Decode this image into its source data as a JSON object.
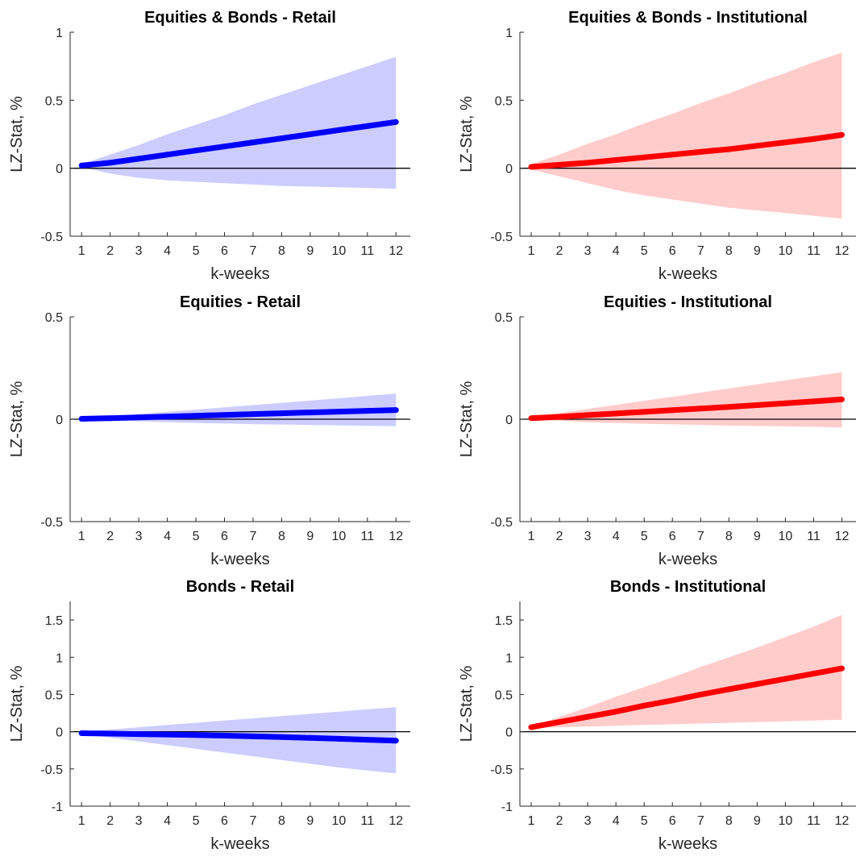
{
  "chart_data": [
    {
      "type": "line",
      "title": "Equities & Bonds - Retail",
      "xlabel": "k-weeks",
      "ylabel": "LZ-Stat, %",
      "xlim": [
        0.6,
        12.5
      ],
      "ylim": [
        -0.5,
        1
      ],
      "yticks": [
        "-0.5",
        "0",
        "0.5",
        "1"
      ],
      "x": [
        1,
        2,
        3,
        4,
        5,
        6,
        7,
        8,
        9,
        10,
        11,
        12
      ],
      "series": [
        {
          "values": [
            0.02,
            0.04,
            0.07,
            0.1,
            0.13,
            0.16,
            0.19,
            0.22,
            0.25,
            0.28,
            0.31,
            0.34
          ]
        }
      ],
      "band": {
        "upper": [
          0.03,
          0.1,
          0.17,
          0.25,
          0.32,
          0.39,
          0.47,
          0.54,
          0.61,
          0.68,
          0.75,
          0.82
        ],
        "lower": [
          0.01,
          -0.04,
          -0.07,
          -0.09,
          -0.1,
          -0.11,
          -0.12,
          -0.13,
          -0.135,
          -0.14,
          -0.145,
          -0.15
        ]
      },
      "color": "#0000ff",
      "band_color": "#ccccff"
    },
    {
      "type": "line",
      "title": "Equities & Bonds - Institutional",
      "xlabel": "k-weeks",
      "ylabel": "LZ-Stat, %",
      "xlim": [
        0.6,
        12.5
      ],
      "ylim": [
        -0.5,
        1
      ],
      "yticks": [
        "-0.5",
        "0",
        "0.5",
        "1"
      ],
      "x": [
        1,
        2,
        3,
        4,
        5,
        6,
        7,
        8,
        9,
        10,
        11,
        12
      ],
      "series": [
        {
          "values": [
            0.01,
            0.025,
            0.04,
            0.06,
            0.08,
            0.1,
            0.12,
            0.14,
            0.165,
            0.19,
            0.215,
            0.245
          ]
        }
      ],
      "band": {
        "upper": [
          0.03,
          0.1,
          0.18,
          0.25,
          0.33,
          0.4,
          0.48,
          0.55,
          0.63,
          0.7,
          0.78,
          0.85
        ],
        "lower": [
          -0.01,
          -0.06,
          -0.11,
          -0.16,
          -0.2,
          -0.23,
          -0.26,
          -0.29,
          -0.31,
          -0.33,
          -0.35,
          -0.37
        ]
      },
      "color": "#ff0000",
      "band_color": "#ffcccc"
    },
    {
      "type": "line",
      "title": "Equities - Retail",
      "xlabel": "k-weeks",
      "ylabel": "LZ-Stat, %",
      "xlim": [
        0.6,
        12.5
      ],
      "ylim": [
        -0.5,
        0.5
      ],
      "yticks": [
        "-0.5",
        "0",
        "0.5"
      ],
      "x": [
        1,
        2,
        3,
        4,
        5,
        6,
        7,
        8,
        9,
        10,
        11,
        12
      ],
      "series": [
        {
          "values": [
            0.002,
            0.005,
            0.009,
            0.013,
            0.017,
            0.021,
            0.025,
            0.029,
            0.033,
            0.037,
            0.041,
            0.045
          ]
        }
      ],
      "band": {
        "upper": [
          0.005,
          0.015,
          0.025,
          0.036,
          0.047,
          0.058,
          0.069,
          0.08,
          0.091,
          0.102,
          0.114,
          0.125
        ],
        "lower": [
          0.0,
          -0.005,
          -0.01,
          -0.014,
          -0.018,
          -0.021,
          -0.024,
          -0.026,
          -0.028,
          -0.03,
          -0.032,
          -0.034
        ]
      },
      "color": "#0000ff",
      "band_color": "#ccccff"
    },
    {
      "type": "line",
      "title": "Equities - Institutional",
      "xlabel": "k-weeks",
      "ylabel": "LZ-Stat, %",
      "xlim": [
        0.6,
        12.5
      ],
      "ylim": [
        -0.5,
        0.5
      ],
      "yticks": [
        "-0.5",
        "0",
        "0.5"
      ],
      "x": [
        1,
        2,
        3,
        4,
        5,
        6,
        7,
        8,
        9,
        10,
        11,
        12
      ],
      "series": [
        {
          "values": [
            0.005,
            0.012,
            0.02,
            0.028,
            0.036,
            0.044,
            0.052,
            0.06,
            0.069,
            0.078,
            0.087,
            0.097
          ]
        }
      ],
      "band": {
        "upper": [
          0.01,
          0.03,
          0.05,
          0.07,
          0.09,
          0.11,
          0.13,
          0.15,
          0.17,
          0.19,
          0.21,
          0.23
        ],
        "lower": [
          0.0,
          -0.008,
          -0.014,
          -0.018,
          -0.022,
          -0.025,
          -0.028,
          -0.031,
          -0.033,
          -0.035,
          -0.037,
          -0.04
        ]
      },
      "color": "#ff0000",
      "band_color": "#ffcccc"
    },
    {
      "type": "line",
      "title": "Bonds - Retail",
      "xlabel": "k-weeks",
      "ylabel": "LZ-Stat, %",
      "xlim": [
        0.6,
        12.5
      ],
      "ylim": [
        -1,
        1.75
      ],
      "yticks": [
        "-1",
        "-0.5",
        "0",
        "0.5",
        "1",
        "1.5"
      ],
      "x": [
        1,
        2,
        3,
        4,
        5,
        6,
        7,
        8,
        9,
        10,
        11,
        12
      ],
      "series": [
        {
          "values": [
            -0.02,
            -0.026,
            -0.032,
            -0.038,
            -0.045,
            -0.053,
            -0.062,
            -0.072,
            -0.083,
            -0.095,
            -0.108,
            -0.12
          ]
        }
      ],
      "band": {
        "upper": [
          0.0,
          0.03,
          0.06,
          0.09,
          0.12,
          0.15,
          0.18,
          0.21,
          0.24,
          0.27,
          0.3,
          0.33
        ],
        "lower": [
          -0.03,
          -0.08,
          -0.13,
          -0.18,
          -0.23,
          -0.28,
          -0.33,
          -0.38,
          -0.43,
          -0.48,
          -0.52,
          -0.56
        ]
      },
      "color": "#0000ff",
      "band_color": "#ccccff"
    },
    {
      "type": "line",
      "title": "Bonds - Institutional",
      "xlabel": "k-weeks",
      "ylabel": "LZ-Stat, %",
      "xlim": [
        0.6,
        12.5
      ],
      "ylim": [
        -1,
        1.75
      ],
      "yticks": [
        "-1",
        "-0.5",
        "0",
        "0.5",
        "1",
        "1.5"
      ],
      "x": [
        1,
        2,
        3,
        4,
        5,
        6,
        7,
        8,
        9,
        10,
        11,
        12
      ],
      "series": [
        {
          "values": [
            0.06,
            0.13,
            0.2,
            0.27,
            0.35,
            0.42,
            0.5,
            0.57,
            0.64,
            0.71,
            0.78,
            0.85
          ]
        }
      ],
      "band": {
        "upper": [
          0.07,
          0.2,
          0.33,
          0.47,
          0.6,
          0.73,
          0.87,
          1.0,
          1.13,
          1.27,
          1.41,
          1.57
        ],
        "lower": [
          0.05,
          0.06,
          0.07,
          0.08,
          0.09,
          0.1,
          0.11,
          0.12,
          0.13,
          0.14,
          0.15,
          0.16
        ]
      },
      "color": "#ff0000",
      "band_color": "#ffcccc"
    }
  ]
}
